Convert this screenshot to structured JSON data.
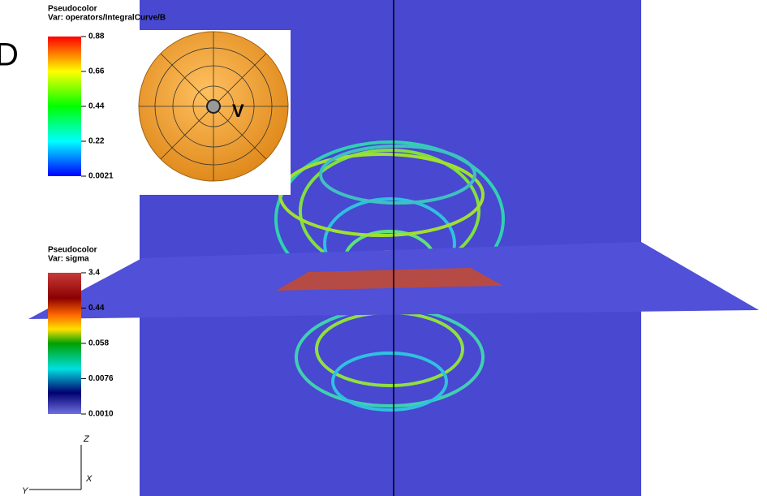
{
  "panel_letter": "D",
  "legends": [
    {
      "title": "Pseudocolor",
      "variable": "Var: operators/IntegralCurve/B",
      "ticks": [
        "0.88",
        "0.66",
        "0.44",
        "0.22",
        "0.0021"
      ]
    },
    {
      "title": "Pseudocolor",
      "variable": "Var: sigma",
      "ticks": [
        "3.4",
        "0.44",
        "0.058",
        "0.0076",
        "0.0010"
      ]
    }
  ],
  "inset_label": "V",
  "axes": {
    "z": "Z",
    "x": "X",
    "y": "Y"
  }
}
